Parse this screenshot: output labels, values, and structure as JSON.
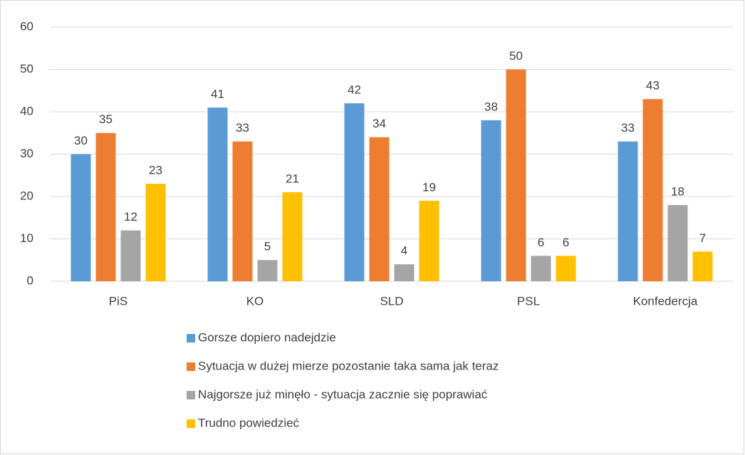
{
  "chart_data": {
    "type": "bar",
    "categories": [
      "PiS",
      "KO",
      "SLD",
      "PSL",
      "Konfedercja"
    ],
    "series": [
      {
        "name": "Gorsze dopiero nadejdzie",
        "color": "#5b9bd5",
        "values": [
          30,
          41,
          42,
          38,
          33
        ]
      },
      {
        "name": "Sytuacja w dużej mierze pozostanie taka sama jak teraz",
        "color": "#ed7d31",
        "values": [
          35,
          33,
          34,
          50,
          43
        ]
      },
      {
        "name": "Najgorsze już minęło - sytuacja zacznie się poprawiać",
        "color": "#a5a5a5",
        "values": [
          12,
          5,
          4,
          6,
          18
        ]
      },
      {
        "name": "Trudno powiedzieć",
        "color": "#ffc000",
        "values": [
          23,
          21,
          19,
          6,
          7
        ]
      }
    ],
    "ylim": [
      0,
      60
    ],
    "yticks": [
      0,
      10,
      20,
      30,
      40,
      50,
      60
    ],
    "grid": true,
    "legend": "bottom"
  }
}
